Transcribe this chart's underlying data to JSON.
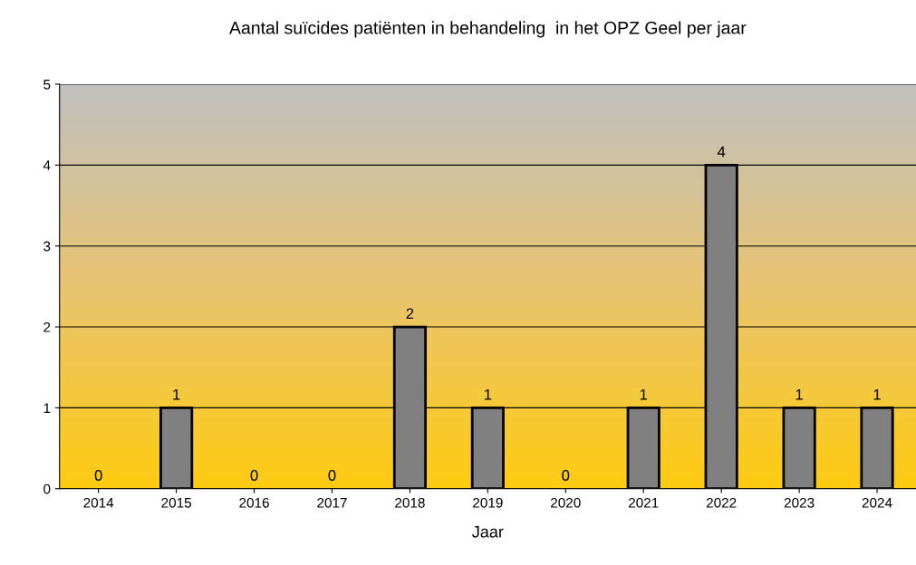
{
  "chart_data": {
    "type": "bar",
    "title": "Aantal suïcides patiënten in behandeling  in het OPZ Geel per jaar",
    "xlabel": "Jaar",
    "categories": [
      "2014",
      "2015",
      "2016",
      "2017",
      "2018",
      "2019",
      "2020",
      "2021",
      "2022",
      "2023",
      "2024"
    ],
    "values": [
      0,
      1,
      0,
      0,
      2,
      1,
      0,
      1,
      4,
      1,
      1
    ],
    "color": "#808080",
    "ylim": [
      0,
      5
    ],
    "yticks": [
      0,
      1,
      2,
      3,
      4,
      5
    ],
    "grid": "y",
    "data_labels": true
  }
}
